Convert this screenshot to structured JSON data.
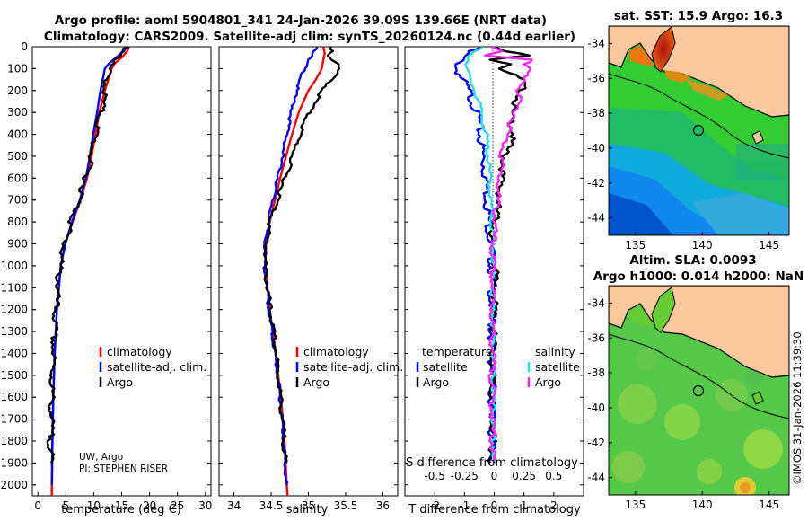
{
  "figure": {
    "title_line1": "Argo profile: aoml 5904801_341 24-Jan-2026 39.09S 139.66E (NRT data)",
    "title_line2": "Climatology: CARS2009. Satellite-adj clim: synTS_20260124.nc (0.44d earlier)",
    "credit_line1": "UW, Argo",
    "credit_line2": "PI: STEPHEN RISER",
    "watermark": "©IMOS 31-Jan-2026 11:39:30"
  },
  "colors": {
    "climatology": "#ff0000",
    "satellite": "#0000ff",
    "argo": "#000000",
    "sat_salinity": "#22e0f0",
    "argo_salinity": "#ff22ff",
    "land": "#f9c89e"
  },
  "chart_data": [
    {
      "id": "temperature",
      "type": "line",
      "xlabel": "temperature (deg C)",
      "ylabel": "",
      "xlim": [
        -1,
        31
      ],
      "ylim": [
        2050,
        0
      ],
      "xticks": [
        0,
        5,
        10,
        15,
        20,
        25,
        30
      ],
      "yticks": [
        0,
        100,
        200,
        300,
        400,
        500,
        600,
        700,
        800,
        900,
        1000,
        1100,
        1200,
        1300,
        1400,
        1500,
        1600,
        1700,
        1800,
        1900,
        2000
      ],
      "legend": [
        "climatology",
        "satellite-adj. clim.",
        "Argo"
      ],
      "series": [
        {
          "name": "climatology",
          "depth": [
            0,
            20,
            50,
            75,
            100,
            150,
            200,
            300,
            400,
            500,
            600,
            700,
            800,
            900,
            1000,
            1200,
            1400,
            1600,
            1800,
            2000,
            2050
          ],
          "values": [
            16.3,
            16.0,
            15.0,
            13.8,
            13.2,
            12.6,
            12.0,
            11.0,
            10.3,
            9.6,
            8.8,
            7.6,
            6.2,
            4.9,
            4.1,
            3.4,
            3.0,
            2.75,
            2.6,
            2.5,
            2.48
          ]
        },
        {
          "name": "satellite-adj. clim.",
          "depth": [
            0,
            20,
            50,
            75,
            100,
            150,
            200,
            300,
            400,
            500,
            600,
            700,
            800,
            900,
            1000,
            1200,
            1400,
            1600,
            1800,
            2000
          ],
          "values": [
            15.9,
            15.4,
            14.0,
            12.8,
            12.0,
            11.6,
            11.2,
            10.6,
            9.9,
            9.3,
            8.6,
            7.5,
            6.1,
            4.9,
            4.1,
            3.4,
            3.0,
            2.75,
            2.6,
            2.5
          ]
        },
        {
          "name": "Argo",
          "depth": [
            0,
            20,
            50,
            75,
            100,
            150,
            200,
            250,
            300,
            400,
            500,
            600,
            700,
            800,
            900,
            1000,
            1200,
            1400,
            1600,
            1800,
            1900
          ],
          "values": [
            16.3,
            15.8,
            15.0,
            13.4,
            13.0,
            12.6,
            12.3,
            12.0,
            11.6,
            10.6,
            9.8,
            8.9,
            7.7,
            6.3,
            5.0,
            4.2,
            3.45,
            3.0,
            2.75,
            2.6,
            2.55
          ]
        }
      ]
    },
    {
      "id": "salinity",
      "type": "line",
      "xlabel": "salinity",
      "xlim": [
        33.8,
        36.2
      ],
      "ylim": [
        2050,
        0
      ],
      "xticks": [
        34,
        34.5,
        35,
        35.5,
        36
      ],
      "legend": [
        "climatology",
        "satellite-adj. clim.",
        "Argo"
      ],
      "series": [
        {
          "name": "climatology",
          "depth": [
            0,
            30,
            60,
            100,
            150,
            200,
            300,
            400,
            500,
            600,
            700,
            800,
            900,
            1000,
            1200,
            1400,
            1600,
            1800,
            2000,
            2050
          ],
          "values": [
            35.2,
            35.22,
            35.2,
            35.18,
            35.1,
            35.0,
            34.87,
            34.78,
            34.7,
            34.62,
            34.55,
            34.48,
            34.43,
            34.42,
            34.48,
            34.56,
            34.63,
            34.68,
            34.71,
            34.72
          ]
        },
        {
          "name": "satellite-adj. clim.",
          "depth": [
            0,
            30,
            60,
            100,
            150,
            200,
            300,
            400,
            500,
            600,
            700,
            800,
            900,
            1000,
            1200,
            1400,
            1600,
            1800,
            2000
          ],
          "values": [
            35.14,
            35.08,
            35.0,
            34.96,
            34.9,
            34.85,
            34.78,
            34.72,
            34.66,
            34.6,
            34.53,
            34.47,
            34.43,
            34.42,
            34.48,
            34.56,
            34.63,
            34.68,
            34.71
          ]
        },
        {
          "name": "Argo",
          "depth": [
            0,
            20,
            40,
            70,
            100,
            150,
            200,
            300,
            400,
            500,
            600,
            700,
            800,
            900,
            1000,
            1200,
            1400,
            1600,
            1800,
            1900
          ],
          "values": [
            35.3,
            35.36,
            35.28,
            35.38,
            35.42,
            35.33,
            35.2,
            35.02,
            34.9,
            34.8,
            34.7,
            34.6,
            34.5,
            34.45,
            34.43,
            34.5,
            34.58,
            34.64,
            34.69,
            34.7
          ]
        }
      ]
    },
    {
      "id": "difference",
      "type": "line",
      "xlabel": "T difference from climatology",
      "xlabel2": "S difference from climatology",
      "xlim": [
        -3,
        3
      ],
      "ylim": [
        2050,
        0
      ],
      "xticks": [
        -2,
        -1,
        0,
        1,
        2
      ],
      "xtick_labels": [
        "-2",
        "-1",
        "0",
        "1",
        "2"
      ],
      "sticks": [
        -0.5,
        -0.25,
        0,
        0.25,
        0.5
      ],
      "stick_labels": [
        "-0.5",
        "-0.25",
        "0",
        "0.25",
        "0.5"
      ],
      "slim": [
        -0.75,
        0.75
      ],
      "legend_left_title": "temperature",
      "legend_right_title": "salinity",
      "legend_left": [
        "satellite",
        "Argo"
      ],
      "legend_right": [
        "satellite",
        "Argo"
      ],
      "series": [
        {
          "name": "T satellite",
          "depth": [
            0,
            20,
            50,
            100,
            150,
            200,
            300,
            400,
            500,
            600,
            800,
            1000,
            1200,
            1500,
            1900
          ],
          "values": [
            -0.4,
            -0.8,
            -1.0,
            -1.2,
            -1.0,
            -0.8,
            -0.5,
            -0.4,
            -0.3,
            -0.2,
            -0.1,
            0.0,
            0.0,
            0.0,
            0.0
          ]
        },
        {
          "name": "T Argo",
          "depth": [
            0,
            20,
            40,
            60,
            80,
            100,
            150,
            200,
            300,
            400,
            500,
            600,
            700,
            800,
            900,
            1000,
            1200,
            1500,
            1900
          ],
          "values": [
            0.0,
            0.4,
            1.2,
            0.0,
            0.7,
            0.3,
            1.0,
            1.0,
            0.6,
            0.7,
            0.4,
            0.3,
            0.2,
            0.1,
            -0.1,
            0.1,
            0.05,
            0.0,
            0.0
          ]
        },
        {
          "name": "S satellite",
          "depth": [
            0,
            20,
            50,
            100,
            150,
            200,
            300,
            400,
            500,
            700,
            900,
            1200,
            1500,
            1900
          ],
          "values": [
            -0.1,
            -0.15,
            -0.2,
            -0.22,
            -0.2,
            -0.15,
            -0.1,
            -0.06,
            -0.04,
            -0.02,
            0.0,
            0.0,
            0.0,
            0.0
          ]
        },
        {
          "name": "S Argo",
          "depth": [
            0,
            20,
            40,
            60,
            80,
            100,
            150,
            200,
            300,
            400,
            500,
            700,
            900,
            1200,
            1500,
            1900
          ],
          "values": [
            0.0,
            0.1,
            -0.05,
            0.35,
            0.25,
            0.3,
            0.28,
            0.22,
            0.2,
            0.12,
            0.08,
            0.04,
            0.0,
            0.0,
            0.0,
            0.0
          ]
        }
      ]
    },
    {
      "id": "sst_map",
      "type": "heatmap",
      "title": "sat. SST: 15.9 Argo: 16.3",
      "xticks": [
        135,
        140,
        145
      ],
      "yticks": [
        -34,
        -36,
        -38,
        -40,
        -42,
        -44
      ],
      "xlim": [
        133,
        146.5
      ],
      "ylim": [
        -45,
        -33
      ],
      "float_lon": 139.66,
      "float_lat": -39.09
    },
    {
      "id": "sla_map",
      "type": "heatmap",
      "title": "Altim. SLA: 0.0093",
      "title2": "Argo h1000: 0.014 h2000: NaN",
      "xticks": [
        135,
        140,
        145
      ],
      "yticks": [
        -34,
        -36,
        -38,
        -40,
        -42,
        -44
      ],
      "xlim": [
        133,
        146.5
      ],
      "ylim": [
        -45,
        -33
      ],
      "float_lon": 139.66,
      "float_lat": -39.09
    }
  ]
}
